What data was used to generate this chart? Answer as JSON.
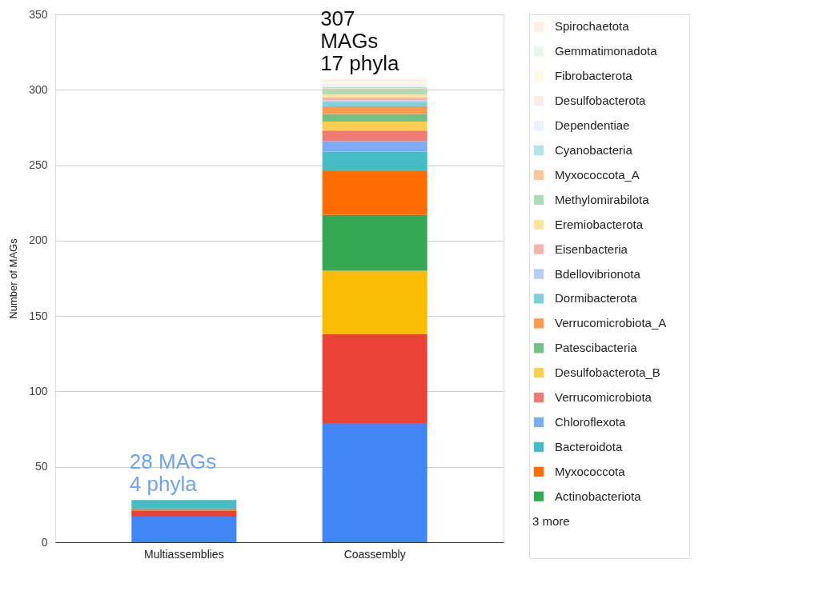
{
  "chart_data": {
    "type": "bar",
    "stacked": true,
    "ylabel": "Number of MAGs",
    "categories": [
      "Multiassemblies",
      "Coassembly"
    ],
    "ylim": [
      0,
      350
    ],
    "yticks": [
      0,
      50,
      100,
      150,
      200,
      250,
      300,
      350
    ],
    "grid": "y",
    "legend": "right",
    "annotations": [
      {
        "text": "28 MAGs\n4 phyla",
        "x": "Multiassemblies",
        "y": 28
      },
      {
        "text": "307\nMAGs\n17 phyla",
        "x": "Coassembly",
        "y": 307
      },
      "3 more"
    ],
    "series": [
      {
        "color": "#4285f4",
        "values": [
          17,
          79
        ]
      },
      {
        "color": "#ea4335",
        "values": [
          4,
          59
        ]
      },
      {
        "color": "#fbbc04",
        "values": [
          null,
          42
        ]
      },
      {
        "name": "Actinobacteriota",
        "color": "#34a853",
        "values": [
          null,
          37
        ]
      },
      {
        "name": "Myxococcota",
        "color": "#ff6d01",
        "values": [
          1,
          29
        ]
      },
      {
        "name": "Bacteroidota",
        "color": "#46bdc6",
        "values": [
          6,
          13
        ]
      },
      {
        "name": "Chloroflexota",
        "color": "#7baaf7",
        "values": [
          null,
          7
        ]
      },
      {
        "name": "Verrucomicrobiota",
        "color": "#f07b72",
        "values": [
          null,
          7
        ]
      },
      {
        "name": "Desulfobacterota_B",
        "color": "#fcd04f",
        "values": [
          null,
          6
        ]
      },
      {
        "name": "Patescibacteria",
        "color": "#71c287",
        "values": [
          null,
          5
        ]
      },
      {
        "name": "Verrucomicrobiota_A",
        "color": "#ff994d",
        "values": [
          null,
          5
        ]
      },
      {
        "name": "Dormibacterota",
        "color": "#7ed1d7",
        "values": [
          null,
          3
        ]
      },
      {
        "name": "Bdellovibrionota",
        "color": "#b3cefb",
        "values": [
          null,
          1
        ]
      },
      {
        "name": "Eisenbacteria",
        "color": "#f7b4ae",
        "values": [
          null,
          2
        ]
      },
      {
        "name": "Eremiobacterota",
        "color": "#fde49b",
        "values": [
          null,
          2
        ]
      },
      {
        "name": "Methylomirabilota",
        "color": "#aedcba",
        "values": [
          null,
          3
        ]
      },
      {
        "name": "Myxococcota_A",
        "color": "#ffc599",
        "values": [
          null,
          1
        ]
      },
      {
        "name": "Cyanobacteria",
        "color": "#b5e5e8",
        "values": [
          null,
          1
        ]
      },
      {
        "name": "Dependentiae",
        "color": "#ecf3fe",
        "values": [
          null,
          1
        ]
      },
      {
        "name": "Desulfobacterota",
        "color": "#fdeceb",
        "values": [
          null,
          1
        ]
      },
      {
        "name": "Fibrobacterota",
        "color": "#fff8e6",
        "values": [
          null,
          1
        ]
      },
      {
        "name": "Gemmatimonadota",
        "color": "#eaf6ed",
        "values": [
          null,
          1
        ]
      },
      {
        "name": "Spirochaetota",
        "color": "#ffefe6",
        "values": [
          null,
          1
        ]
      }
    ]
  }
}
